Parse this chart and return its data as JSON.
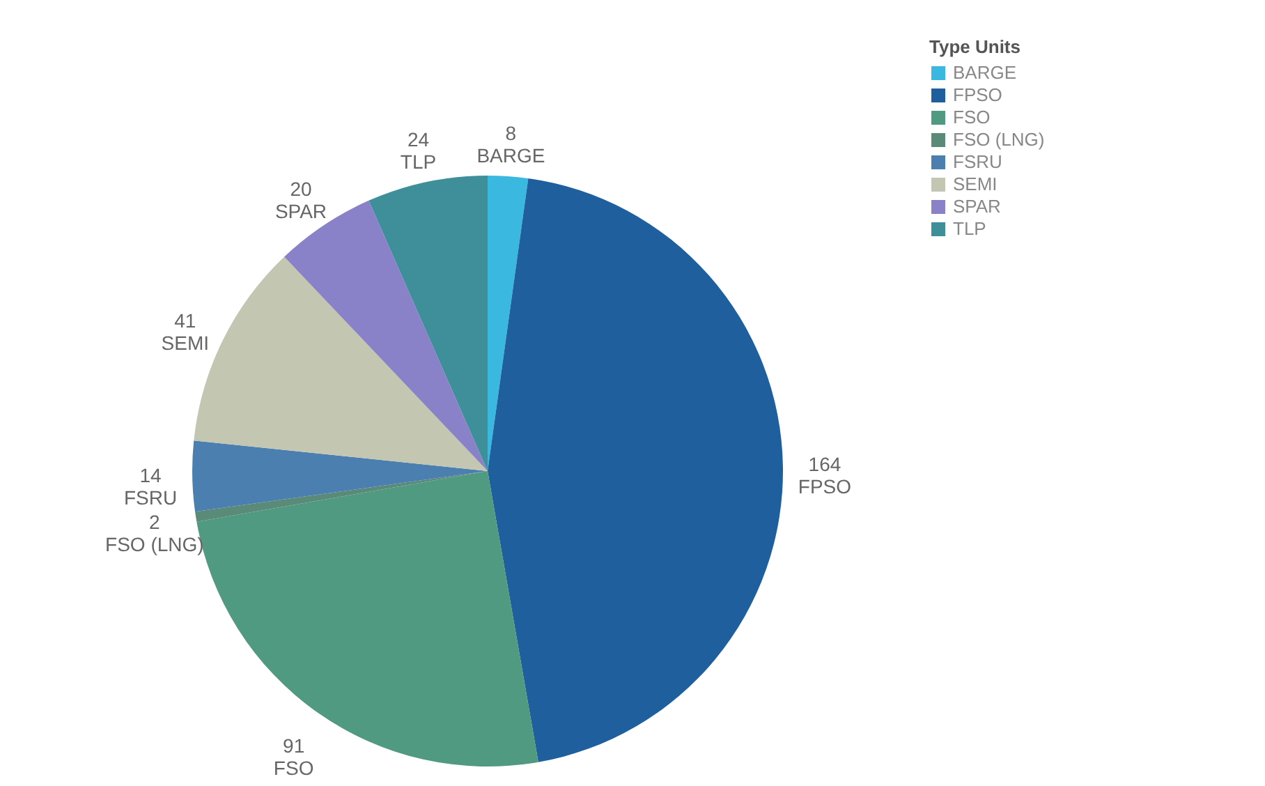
{
  "chart_data": {
    "type": "pie",
    "legend_title": "Type Units",
    "legend": "top right",
    "data_labels": true,
    "categories": [
      "BARGE",
      "FPSO",
      "FSO",
      "FSO (LNG)",
      "FSRU",
      "SEMI",
      "SPAR",
      "TLP"
    ],
    "values": [
      8,
      164,
      91,
      2,
      14,
      41,
      20,
      24
    ],
    "colors": [
      "#3ab8e0",
      "#1f5f9e",
      "#4f9a80",
      "#5a8a78",
      "#4a7fb0",
      "#c3c6b0",
      "#8a82c8",
      "#3f8f9a"
    ]
  }
}
